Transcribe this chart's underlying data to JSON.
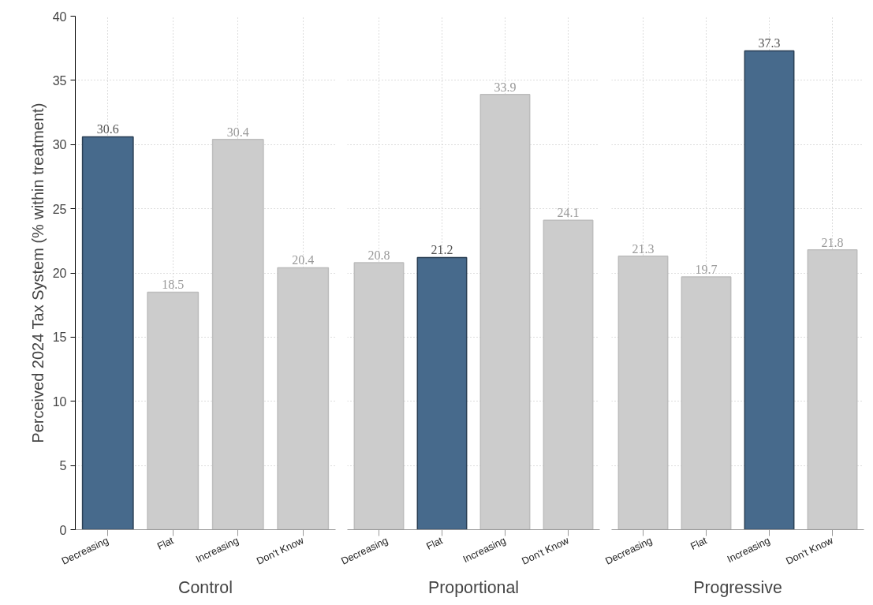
{
  "chart_data": [
    {
      "type": "bar",
      "xlabel": "Control",
      "ylabel": "Perceived 2024 Tax System (% within treatment)",
      "categories": [
        "Decreasing",
        "Flat",
        "Increasing",
        "Don't Know"
      ],
      "values": [
        30.6,
        18.5,
        30.4,
        20.4
      ],
      "colors": [
        "#476a8c",
        "#cccccc",
        "#cccccc",
        "#cccccc"
      ],
      "ylim": [
        0,
        40
      ],
      "yticks": [
        0,
        5,
        10,
        15,
        20,
        25,
        30,
        35,
        40
      ],
      "grid": true,
      "data_labels": true
    },
    {
      "type": "bar",
      "xlabel": "Proportional",
      "categories": [
        "Decreasing",
        "Flat",
        "Increasing",
        "Don't Know"
      ],
      "values": [
        20.8,
        21.2,
        33.9,
        24.1
      ],
      "colors": [
        "#cccccc",
        "#476a8c",
        "#cccccc",
        "#cccccc"
      ],
      "ylim": [
        0,
        40
      ],
      "yticks": [
        0,
        5,
        10,
        15,
        20,
        25,
        30,
        35,
        40
      ],
      "grid": true,
      "data_labels": true,
      "tick_labels": "x"
    },
    {
      "type": "bar",
      "xlabel": "Progressive",
      "categories": [
        "Decreasing",
        "Flat",
        "Increasing",
        "Don't Know"
      ],
      "values": [
        21.3,
        19.7,
        37.3,
        21.8
      ],
      "colors": [
        "#cccccc",
        "#cccccc",
        "#476a8c",
        "#cccccc"
      ],
      "ylim": [
        0,
        40
      ],
      "yticks": [
        0,
        5,
        10,
        15,
        20,
        25,
        30,
        35,
        40
      ],
      "grid": true,
      "data_labels": true,
      "tick_labels": "x"
    }
  ]
}
